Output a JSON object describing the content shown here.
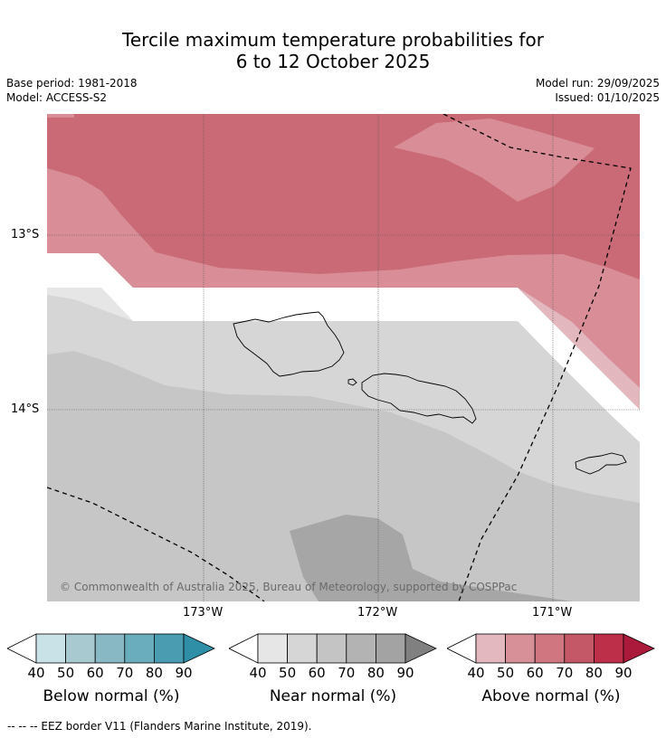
{
  "title_line1": "Tercile maximum temperature probabilities for",
  "title_line2": "6 to 12 October 2025",
  "base_period": "Base period: 1981-2018",
  "model": "Model: ACCESS-S2",
  "model_run": "Model run: 29/09/2025",
  "issued": "Issued: 01/10/2025",
  "copyright": "© Commonwealth of Australia 2025, Bureau of Meteorology, supported by COSPPac",
  "lat_labels": [
    "13°S",
    "14°S"
  ],
  "lon_labels": [
    "173°W",
    "172°W",
    "171°W"
  ],
  "colorbars": [
    {
      "label": "Below normal (%)",
      "ticks": [
        "40",
        "50",
        "60",
        "70",
        "80",
        "90"
      ],
      "colors": [
        "#c9e2e8",
        "#a7c9cf",
        "#88b8c3",
        "#6aadbc",
        "#4a9db0",
        "#2e8fa6"
      ]
    },
    {
      "label": "Near normal (%)",
      "ticks": [
        "40",
        "50",
        "60",
        "70",
        "80",
        "90"
      ],
      "colors": [
        "#e6e6e6",
        "#d6d6d6",
        "#c4c4c4",
        "#b3b3b3",
        "#a3a3a3",
        "#808080"
      ]
    },
    {
      "label": "Above normal (%)",
      "ticks": [
        "40",
        "50",
        "60",
        "70",
        "80",
        "90"
      ],
      "colors": [
        "#e3b8bf",
        "#d78f98",
        "#cf7680",
        "#c45866",
        "#bd2f48",
        "#ab1a3b"
      ]
    }
  ],
  "footer": "--  --  -- EEZ border V11 (Flanders Marine Institute, 2019).",
  "map_colors": {
    "above_70_80": "#c96a76",
    "above_50_60": "#d98e97",
    "above_40_50": "#e2b7be",
    "near_50_60": "#d6d6d6",
    "near_60_70": "#c6c6c6",
    "near_70_80": "#a6a6a6",
    "near_40_50": "#e6e6e6"
  }
}
